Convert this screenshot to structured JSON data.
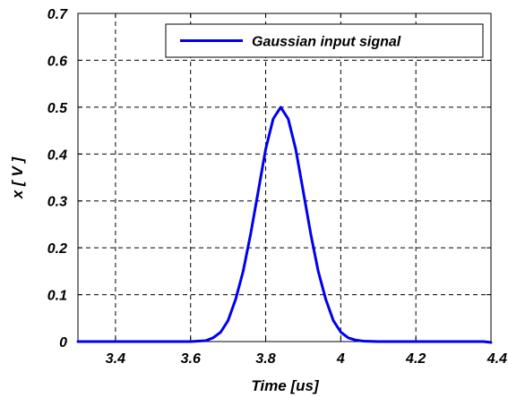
{
  "chart_data": {
    "type": "line",
    "title": "",
    "xlabel": "Time [us]",
    "ylabel": "x [ V ]",
    "xlim": [
      3.3,
      4.4
    ],
    "ylim": [
      0,
      0.7
    ],
    "xticks": [
      "3.4",
      "3.6",
      "3.8",
      "4",
      "4.2",
      "4.4"
    ],
    "xtick_values": [
      3.4,
      3.6,
      3.8,
      4.0,
      4.2,
      4.4
    ],
    "yticks": [
      "0",
      "0.1",
      "0.2",
      "0.3",
      "0.4",
      "0.5",
      "0.6",
      "0.7"
    ],
    "ytick_values": [
      0,
      0.1,
      0.2,
      0.3,
      0.4,
      0.5,
      0.6,
      0.7
    ],
    "grid": true,
    "legend_position": "top-right",
    "series": [
      {
        "name": "Gaussian input signal",
        "color": "#0000ee",
        "x": [
          3.3,
          3.4,
          3.5,
          3.6,
          3.64,
          3.66,
          3.68,
          3.7,
          3.72,
          3.74,
          3.76,
          3.78,
          3.8,
          3.82,
          3.84,
          3.86,
          3.88,
          3.9,
          3.92,
          3.94,
          3.96,
          3.98,
          4.0,
          4.02,
          4.04,
          4.06,
          4.1,
          4.2,
          4.3,
          4.38,
          4.4
        ],
        "y": [
          0,
          0,
          0,
          0,
          0.002,
          0.008,
          0.02,
          0.045,
          0.09,
          0.15,
          0.23,
          0.32,
          0.41,
          0.475,
          0.5,
          0.475,
          0.41,
          0.32,
          0.23,
          0.15,
          0.09,
          0.045,
          0.02,
          0.008,
          0.003,
          0.001,
          0,
          0,
          0,
          0,
          -0.002
        ]
      }
    ]
  }
}
